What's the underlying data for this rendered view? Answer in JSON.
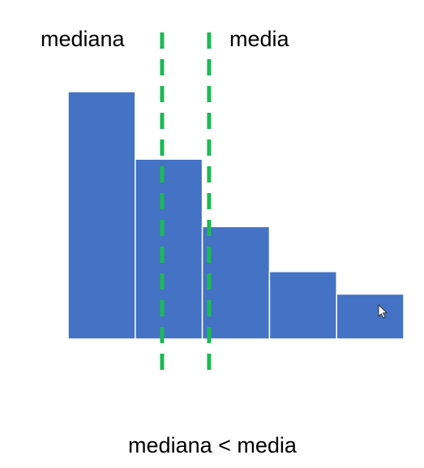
{
  "chart_data": {
    "type": "bar",
    "title": "mediana < media",
    "values": [
      11,
      8,
      5,
      3,
      2
    ],
    "ylim": [
      0,
      11
    ],
    "grid": false,
    "legend": "none",
    "bar_color": "#4472C4",
    "bar_gap_color": "#ffffff",
    "annotations": [
      {
        "label": "mediana",
        "bin_position": 1.4,
        "color": "#1DB954",
        "style": "dashed"
      },
      {
        "label": "media",
        "bin_position": 2.1,
        "color": "#1DB954",
        "style": "dashed"
      }
    ]
  },
  "cursor_icon": "pointer-arrow-icon"
}
